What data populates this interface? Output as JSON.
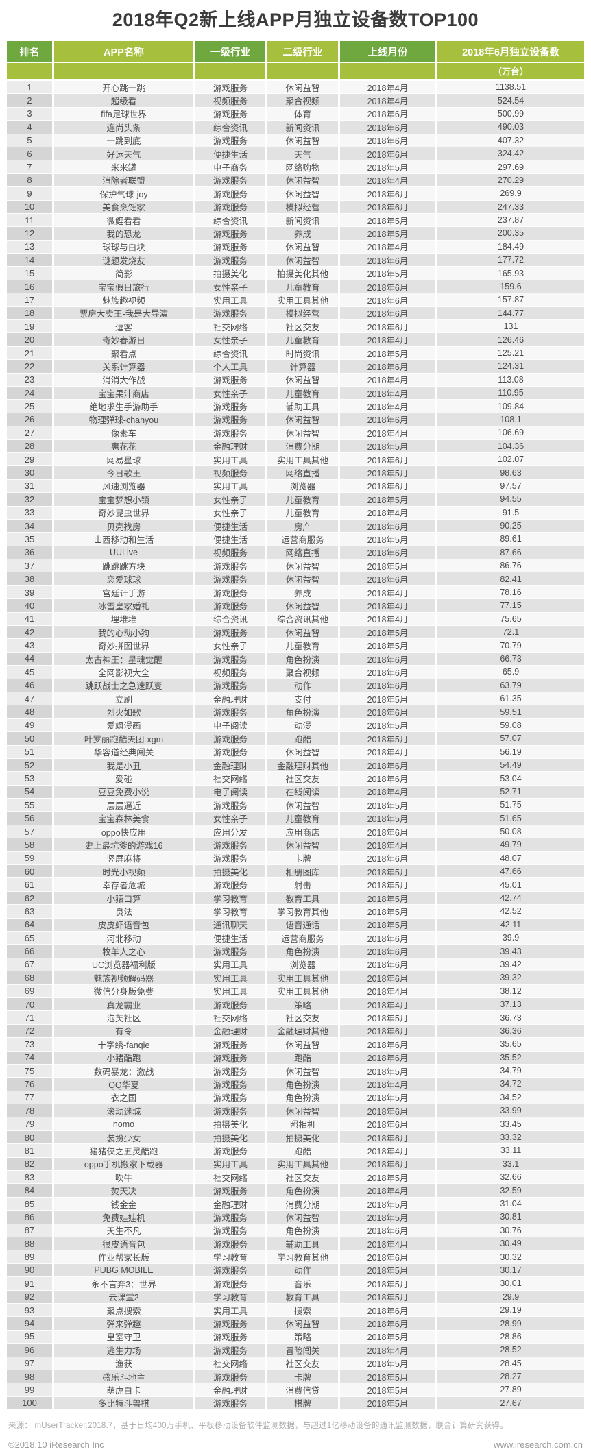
{
  "title": "2018年Q2新上线APP月独立设备数TOP100",
  "colors": {
    "header_green": "#6fa83f",
    "header_yellow_green": "#a6bf3d",
    "row_odd_bg": "#f7f7f7",
    "row_even_bg": "#e2e2e2"
  },
  "table": {
    "columns": [
      "排名",
      "APP名称",
      "一级行业",
      "二级行业",
      "上线月份",
      "2018年6月独立设备数"
    ],
    "unit_label": "（万台）",
    "rows": [
      [
        "1",
        "开心跳一跳",
        "游戏服务",
        "休闲益智",
        "2018年4月",
        "1138.51"
      ],
      [
        "2",
        "超级看",
        "视频服务",
        "聚合视频",
        "2018年4月",
        "524.54"
      ],
      [
        "3",
        "fifa足球世界",
        "游戏服务",
        "体育",
        "2018年6月",
        "500.99"
      ],
      [
        "4",
        "连尚头条",
        "综合资讯",
        "新闻资讯",
        "2018年6月",
        "490.03"
      ],
      [
        "5",
        "一跳到底",
        "游戏服务",
        "休闲益智",
        "2018年6月",
        "407.32"
      ],
      [
        "6",
        "好运天气",
        "便捷生活",
        "天气",
        "2018年6月",
        "324.42"
      ],
      [
        "7",
        "米米罐",
        "电子商务",
        "网络购物",
        "2018年5月",
        "297.69"
      ],
      [
        "8",
        "消除者联盟",
        "游戏服务",
        "休闲益智",
        "2018年4月",
        "270.29"
      ],
      [
        "9",
        "保护气球-joy",
        "游戏服务",
        "休闲益智",
        "2018年6月",
        "269.9"
      ],
      [
        "10",
        "美食烹饪家",
        "游戏服务",
        "模拟经营",
        "2018年6月",
        "247.33"
      ],
      [
        "11",
        "微鲤看看",
        "综合资讯",
        "新闻资讯",
        "2018年5月",
        "237.87"
      ],
      [
        "12",
        "我的恐龙",
        "游戏服务",
        "养成",
        "2018年5月",
        "200.35"
      ],
      [
        "13",
        "球球与白块",
        "游戏服务",
        "休闲益智",
        "2018年4月",
        "184.49"
      ],
      [
        "14",
        "谜题发烧友",
        "游戏服务",
        "休闲益智",
        "2018年6月",
        "177.72"
      ],
      [
        "15",
        "简影",
        "拍摄美化",
        "拍摄美化其他",
        "2018年5月",
        "165.93"
      ],
      [
        "16",
        "宝宝假日旅行",
        "女性亲子",
        "儿童教育",
        "2018年6月",
        "159.6"
      ],
      [
        "17",
        "魅族趣视频",
        "实用工具",
        "实用工具其他",
        "2018年6月",
        "157.87"
      ],
      [
        "18",
        "票房大卖王-我是大导演",
        "游戏服务",
        "模拟经营",
        "2018年6月",
        "144.77"
      ],
      [
        "19",
        "逗客",
        "社交网络",
        "社区交友",
        "2018年6月",
        "131"
      ],
      [
        "20",
        "奇妙春游日",
        "女性亲子",
        "儿童教育",
        "2018年4月",
        "126.46"
      ],
      [
        "21",
        "聚看点",
        "综合资讯",
        "时尚资讯",
        "2018年5月",
        "125.21"
      ],
      [
        "22",
        "关系计算器",
        "个人工具",
        "计算器",
        "2018年6月",
        "124.31"
      ],
      [
        "23",
        "消消大作战",
        "游戏服务",
        "休闲益智",
        "2018年4月",
        "113.08"
      ],
      [
        "24",
        "宝宝果汁商店",
        "女性亲子",
        "儿童教育",
        "2018年4月",
        "110.95"
      ],
      [
        "25",
        "绝地求生手游助手",
        "游戏服务",
        "辅助工具",
        "2018年4月",
        "109.84"
      ],
      [
        "26",
        "物理弹球-chanyou",
        "游戏服务",
        "休闲益智",
        "2018年6月",
        "108.1"
      ],
      [
        "27",
        "像素车",
        "游戏服务",
        "休闲益智",
        "2018年4月",
        "106.69"
      ],
      [
        "28",
        "惠花花",
        "金融理财",
        "消费分期",
        "2018年5月",
        "104.36"
      ],
      [
        "29",
        "网易星球",
        "实用工具",
        "实用工具其他",
        "2018年6月",
        "102.07"
      ],
      [
        "30",
        "今日歌王",
        "视频服务",
        "网络直播",
        "2018年5月",
        "98.63"
      ],
      [
        "31",
        "风速浏览器",
        "实用工具",
        "浏览器",
        "2018年6月",
        "97.57"
      ],
      [
        "32",
        "宝宝梦想小镇",
        "女性亲子",
        "儿童教育",
        "2018年5月",
        "94.55"
      ],
      [
        "33",
        "奇妙昆虫世界",
        "女性亲子",
        "儿童教育",
        "2018年4月",
        "91.5"
      ],
      [
        "34",
        "贝壳找房",
        "便捷生活",
        "房产",
        "2018年6月",
        "90.25"
      ],
      [
        "35",
        "山西移动和生活",
        "便捷生活",
        "运营商服务",
        "2018年5月",
        "89.61"
      ],
      [
        "36",
        "UULive",
        "视频服务",
        "网络直播",
        "2018年6月",
        "87.66"
      ],
      [
        "37",
        "跳跳跳方块",
        "游戏服务",
        "休闲益智",
        "2018年5月",
        "86.76"
      ],
      [
        "38",
        "恋爱球球",
        "游戏服务",
        "休闲益智",
        "2018年6月",
        "82.41"
      ],
      [
        "39",
        "宫廷计手游",
        "游戏服务",
        "养成",
        "2018年4月",
        "78.16"
      ],
      [
        "40",
        "冰雪皇家婚礼",
        "游戏服务",
        "休闲益智",
        "2018年4月",
        "77.15"
      ],
      [
        "41",
        "埋堆堆",
        "综合资讯",
        "综合资讯其他",
        "2018年4月",
        "75.65"
      ],
      [
        "42",
        "我的心动小狗",
        "游戏服务",
        "休闲益智",
        "2018年5月",
        "72.1"
      ],
      [
        "43",
        "奇妙拼图世界",
        "女性亲子",
        "儿童教育",
        "2018年5月",
        "70.79"
      ],
      [
        "44",
        "太古神王：星魂觉醒",
        "游戏服务",
        "角色扮演",
        "2018年6月",
        "66.73"
      ],
      [
        "45",
        "全网影视大全",
        "视频服务",
        "聚合视频",
        "2018年6月",
        "65.9"
      ],
      [
        "46",
        "跳跃战士之急速跃变",
        "游戏服务",
        "动作",
        "2018年6月",
        "63.79"
      ],
      [
        "47",
        "立刷",
        "金融理财",
        "支付",
        "2018年5月",
        "61.35"
      ],
      [
        "48",
        "烈火如歌",
        "游戏服务",
        "角色扮演",
        "2018年6月",
        "59.51"
      ],
      [
        "49",
        "爱飒漫画",
        "电子阅读",
        "动漫",
        "2018年5月",
        "59.08"
      ],
      [
        "50",
        "叶罗丽跑酷天团-xgm",
        "游戏服务",
        "跑酷",
        "2018年5月",
        "57.07"
      ],
      [
        "51",
        "华容道经典闯关",
        "游戏服务",
        "休闲益智",
        "2018年4月",
        "56.19"
      ],
      [
        "52",
        "我是小丑",
        "金融理财",
        "金融理财其他",
        "2018年6月",
        "54.49"
      ],
      [
        "53",
        "爱碰",
        "社交网络",
        "社区交友",
        "2018年6月",
        "53.04"
      ],
      [
        "54",
        "豆豆免费小说",
        "电子阅读",
        "在线阅读",
        "2018年4月",
        "52.71"
      ],
      [
        "55",
        "层层逼近",
        "游戏服务",
        "休闲益智",
        "2018年5月",
        "51.75"
      ],
      [
        "56",
        "宝宝森林美食",
        "女性亲子",
        "儿童教育",
        "2018年5月",
        "51.65"
      ],
      [
        "57",
        "oppo快应用",
        "应用分发",
        "应用商店",
        "2018年6月",
        "50.08"
      ],
      [
        "58",
        "史上最坑爹的游戏16",
        "游戏服务",
        "休闲益智",
        "2018年4月",
        "49.79"
      ],
      [
        "59",
        "竖屏麻将",
        "游戏服务",
        "卡牌",
        "2018年6月",
        "48.07"
      ],
      [
        "60",
        "时光小视频",
        "拍摄美化",
        "相册图库",
        "2018年5月",
        "47.66"
      ],
      [
        "61",
        "幸存者危城",
        "游戏服务",
        "射击",
        "2018年5月",
        "45.01"
      ],
      [
        "62",
        "小猿口算",
        "学习教育",
        "教育工具",
        "2018年5月",
        "42.74"
      ],
      [
        "63",
        "良法",
        "学习教育",
        "学习教育其他",
        "2018年5月",
        "42.52"
      ],
      [
        "64",
        "皮皮虾语音包",
        "通讯聊天",
        "语音通话",
        "2018年5月",
        "42.11"
      ],
      [
        "65",
        "河北移动",
        "便捷生活",
        "运营商服务",
        "2018年6月",
        "39.9"
      ],
      [
        "66",
        "牧羊人之心",
        "游戏服务",
        "角色扮演",
        "2018年6月",
        "39.43"
      ],
      [
        "67",
        "UC浏览器福利版",
        "实用工具",
        "浏览器",
        "2018年6月",
        "39.42"
      ],
      [
        "68",
        "魅族视频解码器",
        "实用工具",
        "实用工具其他",
        "2018年6月",
        "39.32"
      ],
      [
        "69",
        "微信分身版免费",
        "实用工具",
        "实用工具其他",
        "2018年4月",
        "38.12"
      ],
      [
        "70",
        "真龙霸业",
        "游戏服务",
        "策略",
        "2018年4月",
        "37.13"
      ],
      [
        "71",
        "泡芙社区",
        "社交网络",
        "社区交友",
        "2018年5月",
        "36.73"
      ],
      [
        "72",
        "有令",
        "金融理财",
        "金融理财其他",
        "2018年6月",
        "36.36"
      ],
      [
        "73",
        "十字绣-fanqie",
        "游戏服务",
        "休闲益智",
        "2018年6月",
        "35.65"
      ],
      [
        "74",
        "小猪酷跑",
        "游戏服务",
        "跑酷",
        "2018年6月",
        "35.52"
      ],
      [
        "75",
        "数码暴龙：激战",
        "游戏服务",
        "休闲益智",
        "2018年5月",
        "34.79"
      ],
      [
        "76",
        "QQ华夏",
        "游戏服务",
        "角色扮演",
        "2018年4月",
        "34.72"
      ],
      [
        "77",
        "衣之国",
        "游戏服务",
        "角色扮演",
        "2018年5月",
        "34.52"
      ],
      [
        "78",
        "滚动迷城",
        "游戏服务",
        "休闲益智",
        "2018年6月",
        "33.99"
      ],
      [
        "79",
        "nomo",
        "拍摄美化",
        "照相机",
        "2018年6月",
        "33.45"
      ],
      [
        "80",
        "装扮少女",
        "拍摄美化",
        "拍摄美化",
        "2018年6月",
        "33.32"
      ],
      [
        "81",
        "猪猪侠之五灵酷跑",
        "游戏服务",
        "跑酷",
        "2018年4月",
        "33.11"
      ],
      [
        "82",
        "oppo手机搬家下载器",
        "实用工具",
        "实用工具其他",
        "2018年6月",
        "33.1"
      ],
      [
        "83",
        "吹牛",
        "社交网络",
        "社区交友",
        "2018年5月",
        "32.66"
      ],
      [
        "84",
        "焚天决",
        "游戏服务",
        "角色扮演",
        "2018年4月",
        "32.59"
      ],
      [
        "85",
        "钱金金",
        "金融理财",
        "消费分期",
        "2018年5月",
        "31.04"
      ],
      [
        "86",
        "免费娃娃机",
        "游戏服务",
        "休闲益智",
        "2018年5月",
        "30.81"
      ],
      [
        "87",
        "天生不凡",
        "游戏服务",
        "角色扮演",
        "2018年6月",
        "30.76"
      ],
      [
        "88",
        "很皮语音包",
        "游戏服务",
        "辅助工具",
        "2018年4月",
        "30.49"
      ],
      [
        "89",
        "作业帮家长版",
        "学习教育",
        "学习教育其他",
        "2018年6月",
        "30.32"
      ],
      [
        "90",
        "PUBG MOBILE",
        "游戏服务",
        "动作",
        "2018年5月",
        "30.17"
      ],
      [
        "91",
        "永不言弃3：世界",
        "游戏服务",
        "音乐",
        "2018年5月",
        "30.01"
      ],
      [
        "92",
        "云课堂2",
        "学习教育",
        "教育工具",
        "2018年5月",
        "29.9"
      ],
      [
        "93",
        "聚点搜索",
        "实用工具",
        "搜索",
        "2018年6月",
        "29.19"
      ],
      [
        "94",
        "弹来弹趣",
        "游戏服务",
        "休闲益智",
        "2018年6月",
        "28.99"
      ],
      [
        "95",
        "皇室守卫",
        "游戏服务",
        "策略",
        "2018年5月",
        "28.86"
      ],
      [
        "96",
        "逃生力场",
        "游戏服务",
        "冒险闯关",
        "2018年4月",
        "28.52"
      ],
      [
        "97",
        "渔获",
        "社交网络",
        "社区交友",
        "2018年5月",
        "28.45"
      ],
      [
        "98",
        "盛乐斗地主",
        "游戏服务",
        "卡牌",
        "2018年5月",
        "28.27"
      ],
      [
        "99",
        "萌虎白卡",
        "金融理财",
        "消费信贷",
        "2018年5月",
        "27.89"
      ],
      [
        "100",
        "多比特斗兽棋",
        "游戏服务",
        "棋牌",
        "2018年5月",
        "27.67"
      ]
    ]
  },
  "footer": {
    "source": "来源： mUserTracker.2018.7，基于日均400万手机、平板移动设备软件监测数据，与超过1亿移动设备的通讯监测数据，联合计算研究获得。",
    "copyright": "©2018.10 iResearch Inc",
    "website": "www.iresearch.com.cn"
  }
}
